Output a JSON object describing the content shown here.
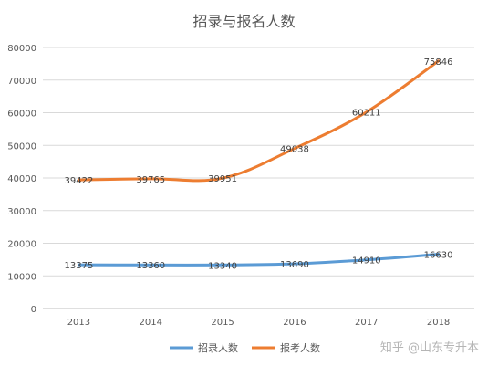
{
  "chart_data": {
    "type": "line",
    "title": "招录与报名人数",
    "categories": [
      "2013",
      "2014",
      "2015",
      "2016",
      "2017",
      "2018"
    ],
    "ylim": [
      0,
      80000
    ],
    "yticks": [
      "0",
      "10000",
      "20000",
      "30000",
      "40000",
      "50000",
      "60000",
      "70000",
      "80000"
    ],
    "grid": true,
    "legend_position": "bottom",
    "series": [
      {
        "name": "招录人数",
        "color": "#5b9bd5",
        "values": [
          13375,
          13360,
          13340,
          13690,
          14910,
          16630
        ]
      },
      {
        "name": "报考人数",
        "color": "#ed7d31",
        "values": [
          39422,
          39765,
          39951,
          49038,
          60211,
          75846
        ]
      }
    ]
  },
  "watermark": "知乎 @山东专升本"
}
